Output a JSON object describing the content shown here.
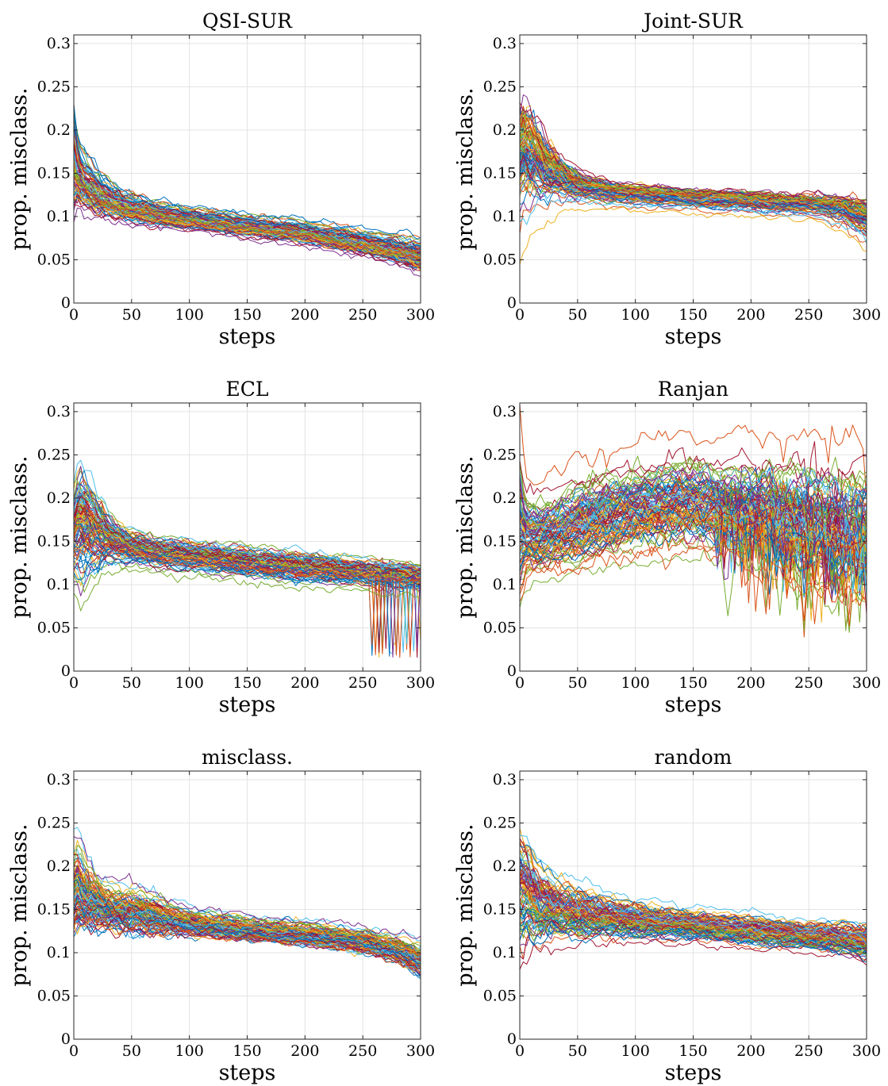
{
  "chart_data": [
    {
      "type": "line",
      "title": "QSI-SUR",
      "xlabel": "steps",
      "ylabel": "prop. misclass.",
      "xlim": [
        0,
        300
      ],
      "ylim": [
        0,
        0.31
      ],
      "xticks": [
        0,
        50,
        100,
        150,
        200,
        250,
        300
      ],
      "yticks": [
        0,
        0.05,
        0.1,
        0.15,
        0.2,
        0.25,
        0.3
      ],
      "grid": true,
      "series_count": 100,
      "envelope": {
        "x": [
          0,
          2,
          5,
          10,
          20,
          35,
          50,
          75,
          100,
          150,
          200,
          250,
          280,
          300
        ],
        "mean": [
          0.158,
          0.15,
          0.142,
          0.135,
          0.125,
          0.115,
          0.108,
          0.101,
          0.096,
          0.088,
          0.08,
          0.068,
          0.06,
          0.052
        ],
        "spread": [
          0.035,
          0.025,
          0.02,
          0.017,
          0.014,
          0.011,
          0.009,
          0.008,
          0.007,
          0.007,
          0.007,
          0.008,
          0.009,
          0.01
        ]
      }
    },
    {
      "type": "line",
      "title": "Joint-SUR",
      "xlabel": "steps",
      "ylabel": "prop. misclass.",
      "xlim": [
        0,
        300
      ],
      "ylim": [
        0,
        0.31
      ],
      "xticks": [
        0,
        50,
        100,
        150,
        200,
        250,
        300
      ],
      "yticks": [
        0,
        0.05,
        0.1,
        0.15,
        0.2,
        0.25,
        0.3
      ],
      "grid": true,
      "series_count": 100,
      "envelope": {
        "x": [
          0,
          3,
          8,
          15,
          25,
          40,
          60,
          80,
          100,
          150,
          200,
          250,
          280,
          300
        ],
        "mean": [
          0.175,
          0.18,
          0.178,
          0.17,
          0.156,
          0.142,
          0.134,
          0.129,
          0.126,
          0.122,
          0.119,
          0.115,
          0.11,
          0.1
        ],
        "spread": [
          0.04,
          0.038,
          0.035,
          0.03,
          0.022,
          0.013,
          0.009,
          0.008,
          0.007,
          0.007,
          0.007,
          0.007,
          0.01,
          0.014
        ]
      }
    },
    {
      "type": "line",
      "title": "ECL",
      "xlabel": "steps",
      "ylabel": "prop. misclass.",
      "xlim": [
        0,
        300
      ],
      "ylim": [
        0,
        0.31
      ],
      "xticks": [
        0,
        50,
        100,
        150,
        200,
        250,
        300
      ],
      "yticks": [
        0,
        0.05,
        0.1,
        0.15,
        0.2,
        0.25,
        0.3
      ],
      "grid": true,
      "series_count": 100,
      "envelope": {
        "x": [
          0,
          5,
          15,
          30,
          50,
          75,
          100,
          150,
          200,
          250,
          270,
          300
        ],
        "mean": [
          0.16,
          0.17,
          0.165,
          0.153,
          0.143,
          0.137,
          0.133,
          0.126,
          0.12,
          0.114,
          0.112,
          0.108
        ],
        "spread": [
          0.03,
          0.04,
          0.032,
          0.016,
          0.011,
          0.01,
          0.01,
          0.01,
          0.01,
          0.009,
          0.009,
          0.009
        ]
      }
    },
    {
      "type": "line",
      "title": "Ranjan",
      "xlabel": "steps",
      "ylabel": "prop. misclass.",
      "xlim": [
        0,
        300
      ],
      "ylim": [
        0,
        0.31
      ],
      "xticks": [
        0,
        50,
        100,
        150,
        200,
        250,
        300
      ],
      "yticks": [
        0,
        0.05,
        0.1,
        0.15,
        0.2,
        0.25,
        0.3
      ],
      "grid": true,
      "series_count": 100,
      "envelope": {
        "x": [
          0,
          5,
          15,
          30,
          50,
          75,
          100,
          125,
          150,
          175,
          200,
          225,
          250,
          275,
          300
        ],
        "mean": [
          0.16,
          0.155,
          0.153,
          0.158,
          0.167,
          0.178,
          0.186,
          0.19,
          0.192,
          0.19,
          0.185,
          0.178,
          0.17,
          0.162,
          0.157
        ],
        "spread": [
          0.04,
          0.022,
          0.02,
          0.022,
          0.024,
          0.024,
          0.024,
          0.025,
          0.025,
          0.025,
          0.027,
          0.03,
          0.034,
          0.036,
          0.036
        ]
      }
    },
    {
      "type": "line",
      "title": "misclass.",
      "xlabel": "steps",
      "ylabel": "prop. misclass.",
      "xlim": [
        0,
        300
      ],
      "ylim": [
        0,
        0.31
      ],
      "xticks": [
        0,
        50,
        100,
        150,
        200,
        250,
        300
      ],
      "yticks": [
        0,
        0.05,
        0.1,
        0.15,
        0.2,
        0.25,
        0.3
      ],
      "grid": true,
      "series_count": 100,
      "envelope": {
        "x": [
          0,
          3,
          10,
          25,
          40,
          55,
          75,
          100,
          150,
          200,
          250,
          280,
          300
        ],
        "mean": [
          0.165,
          0.17,
          0.162,
          0.152,
          0.147,
          0.145,
          0.14,
          0.133,
          0.126,
          0.12,
          0.112,
          0.102,
          0.09
        ],
        "spread": [
          0.035,
          0.035,
          0.026,
          0.018,
          0.016,
          0.017,
          0.013,
          0.01,
          0.009,
          0.009,
          0.009,
          0.01,
          0.012
        ]
      }
    },
    {
      "type": "line",
      "title": "random",
      "xlabel": "steps",
      "ylabel": "prop. misclass.",
      "xlim": [
        0,
        300
      ],
      "ylim": [
        0,
        0.31
      ],
      "xticks": [
        0,
        50,
        100,
        150,
        200,
        250,
        300
      ],
      "yticks": [
        0,
        0.05,
        0.1,
        0.15,
        0.2,
        0.25,
        0.3
      ],
      "grid": true,
      "series_count": 100,
      "envelope": {
        "x": [
          0,
          5,
          15,
          30,
          50,
          75,
          100,
          150,
          200,
          250,
          280,
          300
        ],
        "mean": [
          0.172,
          0.172,
          0.16,
          0.152,
          0.147,
          0.142,
          0.138,
          0.132,
          0.126,
          0.12,
          0.117,
          0.112
        ],
        "spread": [
          0.04,
          0.035,
          0.025,
          0.02,
          0.018,
          0.014,
          0.012,
          0.01,
          0.01,
          0.009,
          0.01,
          0.012
        ]
      }
    }
  ],
  "palette": [
    "#0072BD",
    "#D95319",
    "#EDB120",
    "#7E2F8E",
    "#77AC30",
    "#4DBEEE",
    "#A2142F"
  ]
}
